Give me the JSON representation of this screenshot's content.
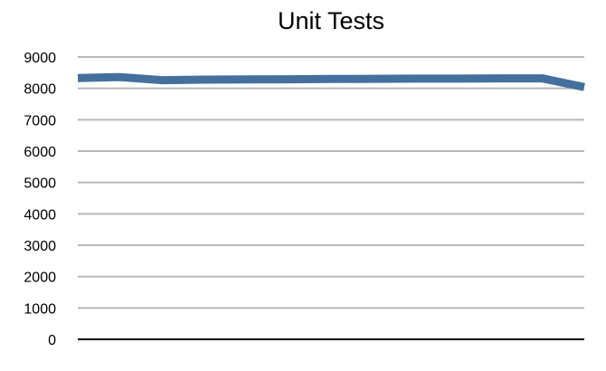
{
  "chart_data": {
    "type": "line",
    "title": "Unit Tests",
    "xlabel": "",
    "ylabel": "",
    "ylim": [
      0,
      9000
    ],
    "yticks": [
      0,
      1000,
      2000,
      3000,
      4000,
      5000,
      6000,
      7000,
      8000,
      9000
    ],
    "grid": true,
    "legend": "none",
    "colors": {
      "series": "#44709e",
      "grid": "#b8b8b8",
      "axis": "#000000"
    },
    "series": [
      {
        "values": [
          8330,
          8360,
          8260,
          8280,
          8285,
          8290,
          8300,
          8305,
          8310,
          8310,
          8320,
          8320,
          8040
        ]
      }
    ]
  }
}
